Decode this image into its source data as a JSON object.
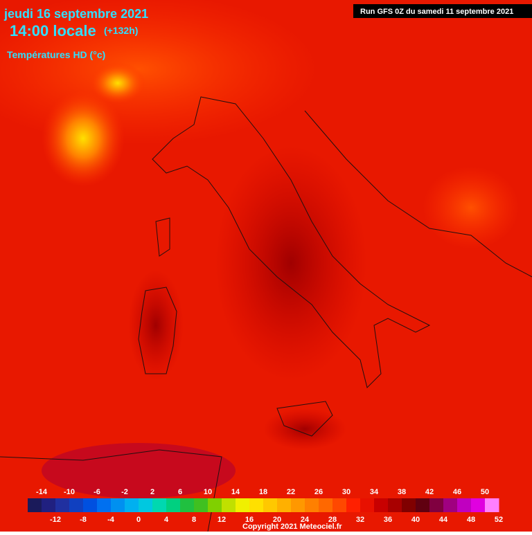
{
  "header": {
    "date": "jeudi 16 septembre 2021",
    "time": "14:00 locale",
    "lead": "(+132h)",
    "field": "Températures HD (°c)",
    "run": "Run GFS 0Z du samedi 11 septembre 2021"
  },
  "legend": {
    "range": [
      -16,
      52
    ],
    "ticks_top": [
      -14,
      -10,
      -6,
      -2,
      2,
      6,
      10,
      14,
      18,
      22,
      26,
      30,
      34,
      38,
      42,
      46,
      50
    ],
    "ticks_bottom": [
      -12,
      -8,
      -4,
      0,
      4,
      8,
      12,
      16,
      20,
      24,
      28,
      32,
      36,
      40,
      44,
      48,
      52
    ],
    "colors": [
      "#1a1a5a",
      "#202080",
      "#2030a0",
      "#1040c0",
      "#0050e0",
      "#0070f0",
      "#0090f0",
      "#00b0f0",
      "#00c8e0",
      "#00d8b0",
      "#00d080",
      "#20c040",
      "#40c020",
      "#80d000",
      "#c0e000",
      "#f0f000",
      "#ffe000",
      "#ffc800",
      "#ffb000",
      "#ff9800",
      "#ff8000",
      "#ff6800",
      "#ff4800",
      "#ff2000",
      "#e81000",
      "#c80000",
      "#a80000",
      "#800000",
      "#600010",
      "#800040",
      "#a00080",
      "#c000c0",
      "#e000e0",
      "#ff80ff"
    ]
  },
  "footer": {
    "copyright": "Copyright 2021 Meteociel.fr"
  }
}
